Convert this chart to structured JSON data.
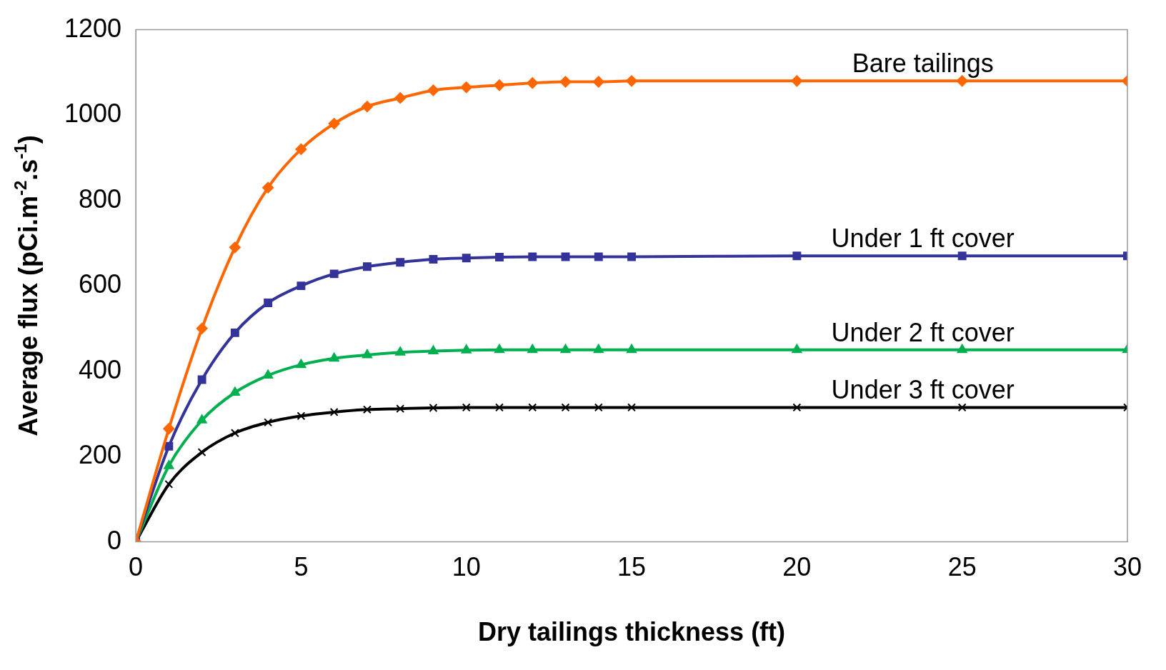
{
  "chart_data": {
    "type": "line",
    "xlabel": "Dry tailings thickness (ft)",
    "ylabel": "Average flux (pCi.m$^{-2}$.s$^{-1}$)",
    "x": [
      0,
      1,
      2,
      3,
      4,
      5,
      6,
      7,
      8,
      9,
      10,
      11,
      12,
      13,
      14,
      15,
      20,
      25,
      30
    ],
    "series": [
      {
        "name": "Bare tailings",
        "color": "#ff6600",
        "marker": "diamond",
        "values": [
          0,
          265,
          500,
          690,
          830,
          920,
          980,
          1020,
          1040,
          1058,
          1065,
          1070,
          1075,
          1078,
          1078,
          1080,
          1080,
          1080,
          1080
        ]
      },
      {
        "name": "Under 1 ft cover",
        "color": "#333399",
        "marker": "square",
        "values": [
          0,
          224,
          380,
          490,
          560,
          600,
          628,
          645,
          655,
          662,
          665,
          667,
          668,
          668,
          668,
          668,
          670,
          670,
          670
        ]
      },
      {
        "name": "Under 2 ft cover",
        "color": "#00b050",
        "marker": "triangle",
        "values": [
          0,
          178,
          285,
          350,
          390,
          415,
          430,
          438,
          444,
          447,
          449,
          450,
          450,
          450,
          450,
          450,
          450,
          450,
          450
        ]
      },
      {
        "name": "Under 3 ft cover",
        "color": "#000000",
        "marker": "cross",
        "values": [
          0,
          135,
          210,
          255,
          280,
          295,
          304,
          310,
          312,
          314,
          315,
          315,
          315,
          315,
          315,
          315,
          315,
          315,
          315
        ]
      }
    ],
    "xlim": [
      0,
      30
    ],
    "xticks": [
      0,
      5,
      10,
      15,
      20,
      25,
      30
    ],
    "ylim": [
      0,
      1200
    ],
    "yticks": [
      0,
      200,
      400,
      600,
      800,
      1000,
      1200
    ],
    "grid": false,
    "legend": false
  }
}
